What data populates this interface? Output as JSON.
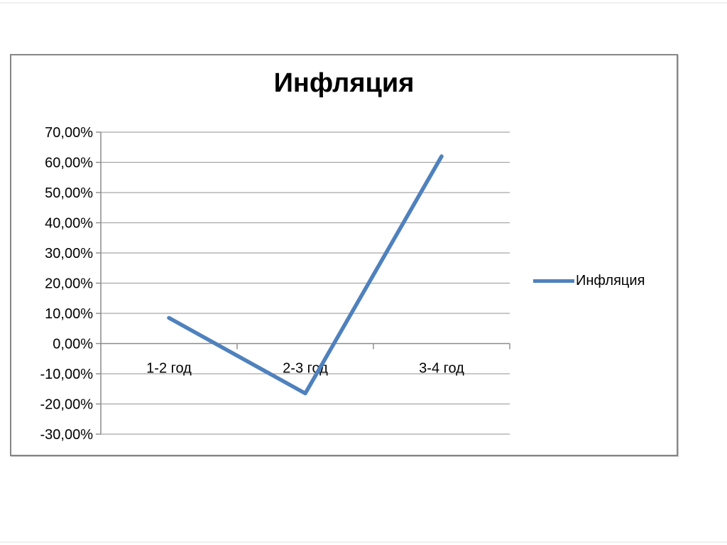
{
  "chart": {
    "title": "Инфляция",
    "legend_label": "Инфляция"
  },
  "chart_data": {
    "type": "line",
    "title": "Инфляция",
    "categories": [
      "1-2 год",
      "2-3 год",
      "3-4 год"
    ],
    "series": [
      {
        "name": "Инфляция",
        "values": [
          8.5,
          -16.5,
          62.0
        ]
      }
    ],
    "xlabel": "",
    "ylabel": "",
    "ylim": [
      -30,
      70
    ],
    "y_step": 10,
    "y_tick_labels": [
      "70,00%",
      "60,00%",
      "50,00%",
      "40,00%",
      "30,00%",
      "20,00%",
      "10,00%",
      "0,00%",
      "-10,00%",
      "-20,00%",
      "-30,00%"
    ],
    "grid": true,
    "legend_position": "right",
    "colors": {
      "line": "#4f81bd",
      "gridline": "#a6a6a6",
      "axis": "#8a8a8a",
      "frame_border": "#868686",
      "text": "#000000"
    }
  }
}
